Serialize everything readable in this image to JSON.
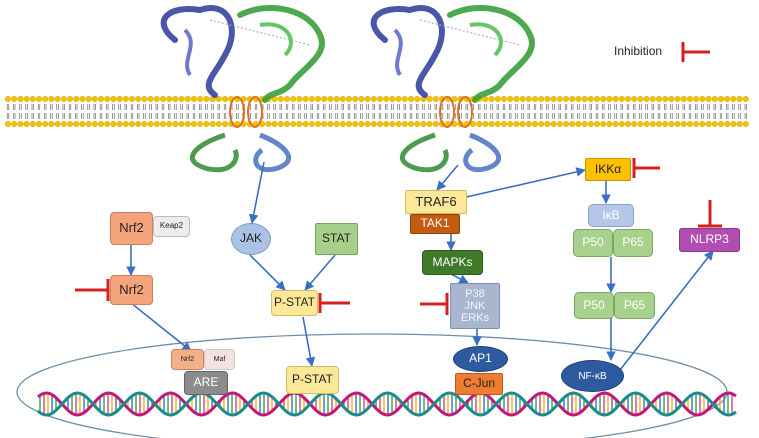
{
  "legend": {
    "text": "Inhibition"
  },
  "nrf2_pathway": {
    "nrf2_cyto": "Nrf2",
    "keap2": "Keap2",
    "nrf2_free": "Nrf2",
    "nrf2_nuc": "Nrf2",
    "maf": "Maf",
    "are": "ARE"
  },
  "jak_stat_pathway": {
    "jak": "JAK",
    "stat": "STAT",
    "pstat": "P-STAT",
    "pstat_nuc": "P-STAT"
  },
  "traf_pathway": {
    "traf6": "TRAF6",
    "tak1": "TAK1",
    "mapks": "MAPKs",
    "p38": "P38",
    "jnk": "JNK",
    "erks": "ERKs",
    "ap1": "AP1",
    "cjun": "C-Jun"
  },
  "nfkb_pathway": {
    "ikka": "IKKα",
    "ikb": "IκB",
    "p50_a": "P50",
    "p65_a": "P65",
    "p50_b": "P50",
    "p65_b": "P65",
    "nfkb": "NF-κB",
    "nlrp3": "NLRP3"
  },
  "colors": {
    "inhibition": "#d62020",
    "arrow": "#3a6fc4",
    "lipid_head": "#f2c200"
  }
}
